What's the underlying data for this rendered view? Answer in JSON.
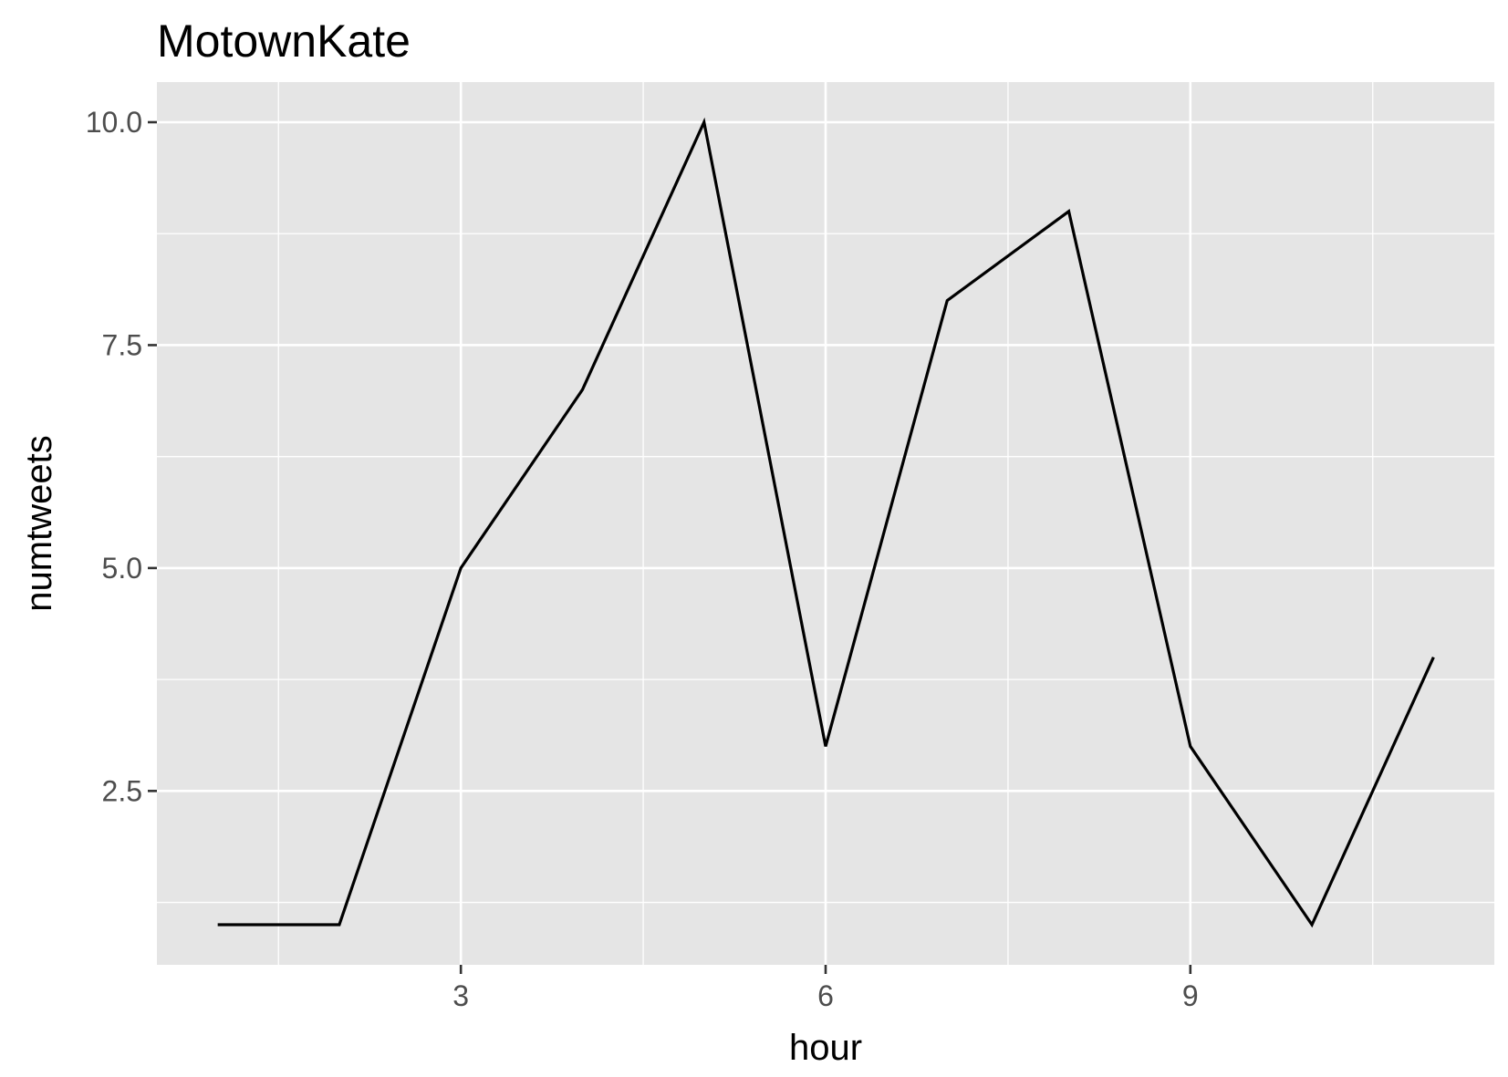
{
  "chart_data": {
    "type": "line",
    "title": "MotownKate",
    "xlabel": "hour",
    "ylabel": "numtweets",
    "x": [
      1,
      2,
      3,
      4,
      5,
      6,
      7,
      8,
      9,
      10,
      11
    ],
    "series": [
      {
        "values": [
          1,
          1,
          5,
          7,
          10,
          3,
          8,
          9,
          3,
          1,
          4
        ],
        "color": "#000000"
      }
    ],
    "xlim": [
      0.5,
      11.5
    ],
    "ylim": [
      0.55,
      10.45
    ],
    "xticks": [
      3,
      6,
      9
    ],
    "xtick_labels": [
      "3",
      "6",
      "9"
    ],
    "xminor": [
      1.5,
      4.5,
      7.5,
      10.5
    ],
    "yticks": [
      2.5,
      5.0,
      7.5,
      10.0
    ],
    "ytick_labels": [
      "2.5",
      "5.0",
      "7.5",
      "10.0"
    ],
    "yminor": [
      1.25,
      3.75,
      6.25,
      8.75
    ],
    "grid": true,
    "colors": {
      "panel": "#e5e5e5",
      "grid": "#ffffff",
      "line": "#000000",
      "tick": "#333333"
    }
  }
}
